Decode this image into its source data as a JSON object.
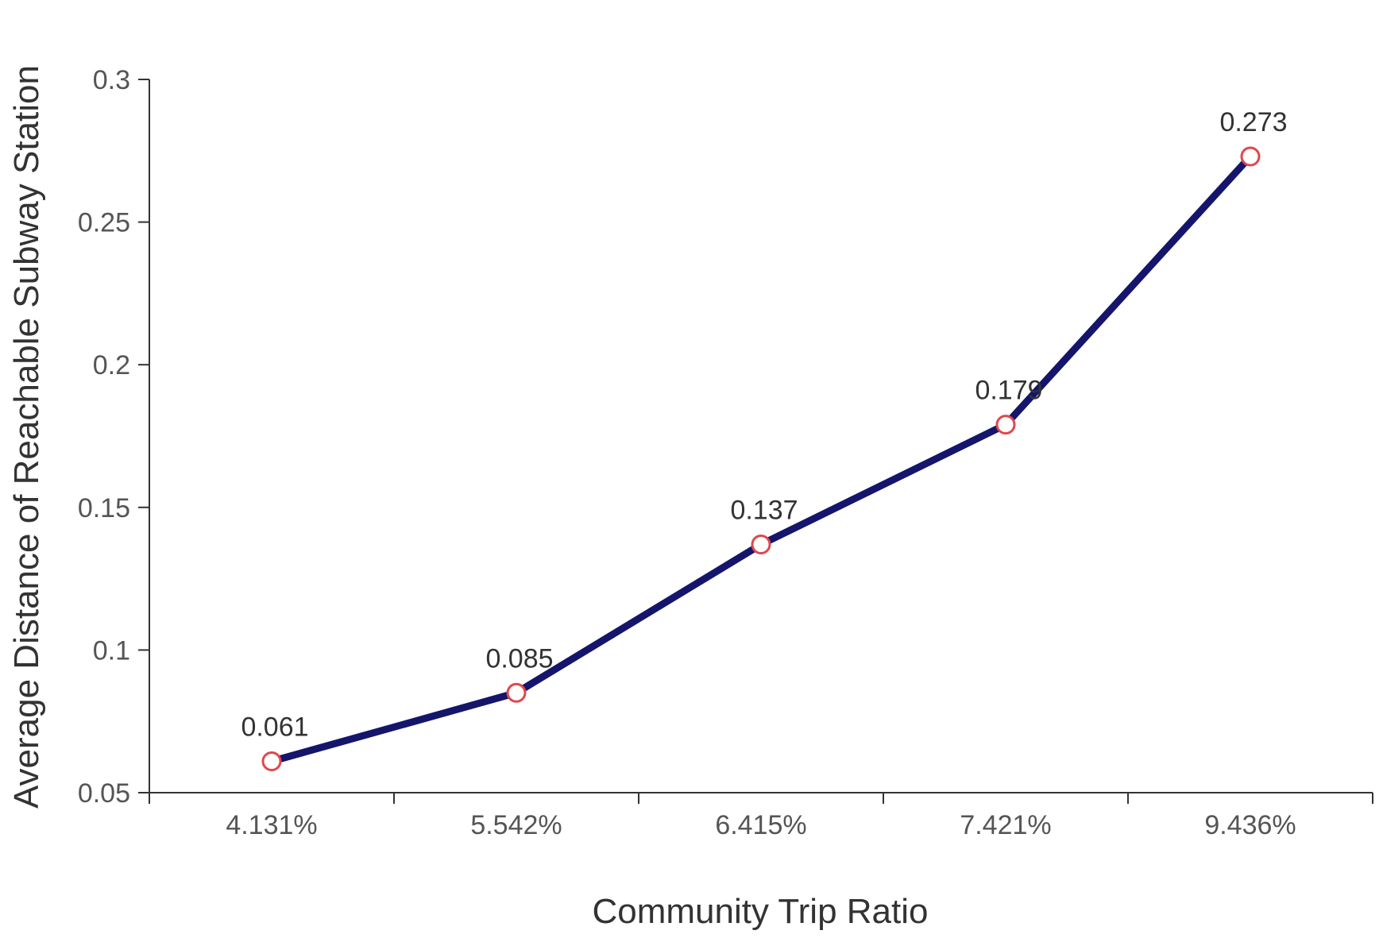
{
  "chart_data": {
    "type": "line",
    "xlabel": "Community Trip Ratio",
    "ylabel": "Average Distance of Reachable Subway Station",
    "categories": [
      "4.131%",
      "5.542%",
      "6.415%",
      "7.421%",
      "9.436%"
    ],
    "series": [
      {
        "values": [
          0.061,
          0.085,
          0.137,
          0.179,
          0.273
        ]
      }
    ],
    "data_labels": [
      "0.061",
      "0.085",
      "0.137",
      "0.179",
      "0.273"
    ],
    "ylim": [
      0.05,
      0.3
    ],
    "yticks": [
      0.05,
      0.1,
      0.15,
      0.2,
      0.25,
      0.3
    ],
    "ytick_labels": [
      "0.05",
      "0.1",
      "0.15",
      "0.2",
      "0.25",
      "0.3"
    ],
    "grid": false,
    "colors": {
      "line": "#14156b",
      "marker_stroke": "#e0474c",
      "marker_fill": "#ffffff",
      "axis": "#333333"
    }
  }
}
